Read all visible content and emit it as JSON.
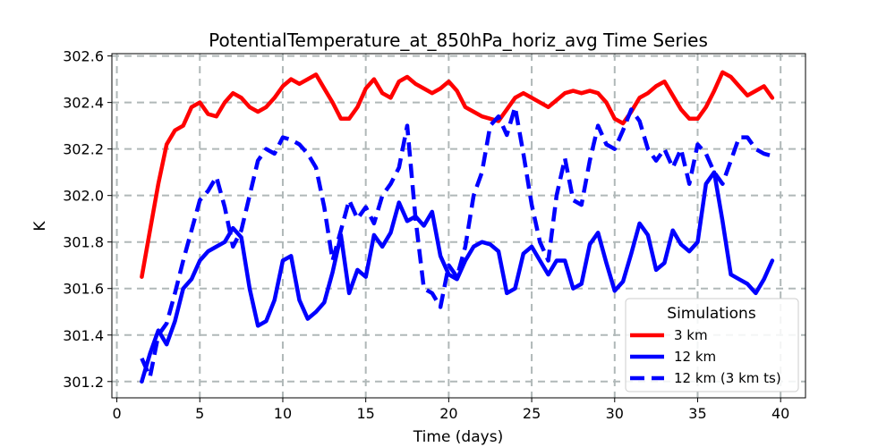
{
  "chart_data": {
    "type": "line",
    "title": "PotentialTemperature_at_850hPa_horiz_avg Time Series",
    "xlabel": "Time (days)",
    "ylabel": "K",
    "xlim": [
      -0.3,
      41.5
    ],
    "ylim": [
      301.13,
      302.61
    ],
    "xticks": [
      0,
      5,
      10,
      15,
      20,
      25,
      30,
      35,
      40
    ],
    "yticks": [
      301.2,
      301.4,
      301.6,
      301.8,
      302.0,
      302.2,
      302.4,
      302.6
    ],
    "ytick_labels": [
      "301.2",
      "301.4",
      "301.6",
      "301.8",
      "302.0",
      "302.2",
      "302.4",
      "302.6"
    ],
    "grid": true,
    "legend": {
      "title": "Simulations",
      "position": "lower-right"
    },
    "series": [
      {
        "name": "3 km",
        "color": "#ff0000",
        "style": "solid",
        "x": [
          1.5,
          2.0,
          2.5,
          3.0,
          3.5,
          4.0,
          4.5,
          5.0,
          5.5,
          6.0,
          6.5,
          7.0,
          7.5,
          8.0,
          8.5,
          9.0,
          9.5,
          10.0,
          10.5,
          11.0,
          11.5,
          12.0,
          12.5,
          13.0,
          13.5,
          14.0,
          14.5,
          15.0,
          15.5,
          16.0,
          16.5,
          17.0,
          17.5,
          18.0,
          18.5,
          19.0,
          19.5,
          20.0,
          20.5,
          21.0,
          21.5,
          22.0,
          22.5,
          23.0,
          23.5,
          24.0,
          24.5,
          25.0,
          25.5,
          26.0,
          26.5,
          27.0,
          27.5,
          28.0,
          28.5,
          29.0,
          29.5,
          30.0,
          30.5,
          31.0,
          31.5,
          32.0,
          32.5,
          33.0,
          33.5,
          34.0,
          34.5,
          35.0,
          35.5,
          36.0,
          36.5,
          37.0,
          37.5,
          38.0,
          38.5,
          39.0,
          39.5
        ],
        "values": [
          301.65,
          301.85,
          302.05,
          302.22,
          302.28,
          302.3,
          302.38,
          302.4,
          302.35,
          302.34,
          302.4,
          302.44,
          302.42,
          302.38,
          302.36,
          302.38,
          302.42,
          302.47,
          302.5,
          302.48,
          302.5,
          302.52,
          302.46,
          302.4,
          302.33,
          302.33,
          302.38,
          302.46,
          302.5,
          302.44,
          302.42,
          302.49,
          302.51,
          302.48,
          302.46,
          302.44,
          302.46,
          302.49,
          302.45,
          302.38,
          302.36,
          302.34,
          302.33,
          302.32,
          302.37,
          302.42,
          302.44,
          302.42,
          302.4,
          302.38,
          302.41,
          302.44,
          302.45,
          302.44,
          302.45,
          302.44,
          302.4,
          302.33,
          302.31,
          302.36,
          302.42,
          302.44,
          302.47,
          302.49,
          302.43,
          302.37,
          302.33,
          302.33,
          302.38,
          302.45,
          302.53,
          302.51,
          302.47,
          302.43,
          302.45,
          302.47,
          302.42
        ]
      },
      {
        "name": "12 km",
        "color": "#0000ff",
        "style": "solid",
        "x": [
          1.5,
          2.0,
          2.5,
          3.0,
          3.5,
          4.0,
          4.5,
          5.0,
          5.5,
          6.0,
          6.5,
          7.0,
          7.5,
          8.0,
          8.5,
          9.0,
          9.5,
          10.0,
          10.5,
          11.0,
          11.5,
          12.0,
          12.5,
          13.0,
          13.5,
          14.0,
          14.5,
          15.0,
          15.5,
          16.0,
          16.5,
          17.0,
          17.5,
          18.0,
          18.5,
          19.0,
          19.5,
          20.0,
          20.5,
          21.0,
          21.5,
          22.0,
          22.5,
          23.0,
          23.5,
          24.0,
          24.5,
          25.0,
          25.5,
          26.0,
          26.5,
          27.0,
          27.5,
          28.0,
          28.5,
          29.0,
          29.5,
          30.0,
          30.5,
          31.0,
          31.5,
          32.0,
          32.5,
          33.0,
          33.5,
          34.0,
          34.5,
          35.0,
          35.5,
          36.0,
          36.5,
          37.0,
          37.5,
          38.0,
          38.5,
          39.0,
          39.5
        ],
        "values": [
          301.2,
          301.32,
          301.42,
          301.36,
          301.46,
          301.6,
          301.64,
          301.72,
          301.76,
          301.78,
          301.8,
          301.86,
          301.82,
          301.6,
          301.44,
          301.46,
          301.55,
          301.72,
          301.74,
          301.55,
          301.47,
          301.5,
          301.54,
          301.67,
          301.83,
          301.58,
          301.68,
          301.65,
          301.83,
          301.78,
          301.84,
          301.97,
          301.89,
          301.91,
          301.87,
          301.93,
          301.74,
          301.66,
          301.64,
          301.72,
          301.78,
          301.8,
          301.79,
          301.76,
          301.58,
          301.6,
          301.75,
          301.78,
          301.72,
          301.66,
          301.72,
          301.72,
          301.6,
          301.62,
          301.79,
          301.84,
          301.71,
          301.59,
          301.63,
          301.75,
          301.88,
          301.83,
          301.68,
          301.71,
          301.85,
          301.79,
          301.76,
          301.8,
          302.05,
          302.1,
          301.89,
          301.66,
          301.64,
          301.62,
          301.58,
          301.64,
          301.72
        ]
      },
      {
        "name": "12 km (3 km ts)",
        "color": "#0000ff",
        "style": "dashed",
        "x": [
          1.5,
          2.0,
          2.5,
          3.0,
          3.5,
          4.0,
          4.5,
          5.0,
          5.5,
          6.0,
          6.5,
          7.0,
          7.5,
          8.0,
          8.5,
          9.0,
          9.5,
          10.0,
          10.5,
          11.0,
          11.5,
          12.0,
          12.5,
          13.0,
          13.5,
          14.0,
          14.5,
          15.0,
          15.5,
          16.0,
          16.5,
          17.0,
          17.5,
          18.0,
          18.5,
          19.0,
          19.5,
          20.0,
          20.5,
          21.0,
          21.5,
          22.0,
          22.5,
          23.0,
          23.5,
          24.0,
          24.5,
          25.0,
          25.5,
          26.0,
          26.5,
          27.0,
          27.5,
          28.0,
          28.5,
          29.0,
          29.5,
          30.0,
          30.5,
          31.0,
          31.5,
          32.0,
          32.5,
          33.0,
          33.5,
          34.0,
          34.5,
          35.0,
          35.5,
          36.0,
          36.5,
          37.0,
          37.5,
          38.0,
          38.5,
          39.0,
          39.5
        ],
        "values": [
          301.3,
          301.22,
          301.4,
          301.45,
          301.58,
          301.72,
          301.85,
          301.98,
          302.02,
          302.08,
          301.95,
          301.78,
          301.85,
          302.0,
          302.15,
          302.2,
          302.18,
          302.25,
          302.24,
          302.22,
          302.18,
          302.12,
          301.95,
          301.72,
          301.85,
          301.98,
          301.9,
          301.95,
          301.88,
          302.0,
          302.05,
          302.12,
          302.3,
          301.9,
          301.6,
          301.58,
          301.52,
          301.7,
          301.65,
          301.78,
          302.0,
          302.1,
          302.3,
          302.34,
          302.26,
          302.38,
          302.18,
          301.96,
          301.8,
          301.72,
          302.0,
          302.16,
          301.98,
          301.96,
          302.15,
          302.3,
          302.22,
          302.2,
          302.28,
          302.37,
          302.32,
          302.2,
          302.15,
          302.2,
          302.12,
          302.2,
          302.05,
          302.22,
          302.18,
          302.1,
          302.05,
          302.15,
          302.25,
          302.25,
          302.2,
          302.18,
          302.17
        ]
      }
    ]
  }
}
